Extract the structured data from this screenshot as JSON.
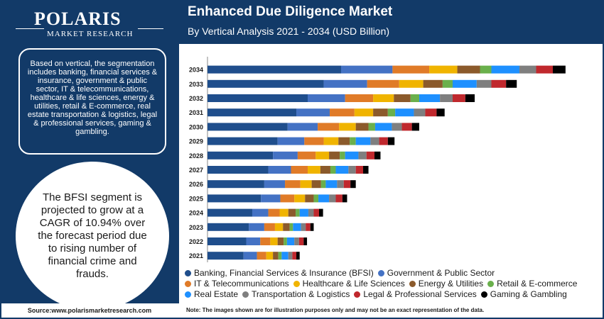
{
  "brand": {
    "name": "POLARIS",
    "sub": "MARKET RESEARCH"
  },
  "info_text": "Based on vertical, the segmentation includes banking, financial services & insurance, government & public sector, IT & telecommunications, healthcare & life sciences, energy & utilities, retail & E-commerce, real estate transportation & logistics, legal & professional services, gaming & gambling.",
  "circle_text": "The BFSI segment is projected to grow at a CAGR of 10.94% over the forecast period due to rising number of financial crime and frauds.",
  "source_text": "Source:www.polarismarketresearch.com",
  "note_text": "Note: The images shown are for illustration purposes only and may not be an exact representation of the data.",
  "chart_data": {
    "type": "bar",
    "orientation": "horizontal",
    "stacked": true,
    "title": "Enhanced Due Diligence Market",
    "subtitle": "By Vertical Analysis 2021 - 2034 (USD Billion)",
    "categories": [
      "2034",
      "2033",
      "2032",
      "2031",
      "2030",
      "2029",
      "2028",
      "2027",
      "2026",
      "2025",
      "2024",
      "2023",
      "2022",
      "2021"
    ],
    "legend_position": "bottom",
    "grid": false,
    "series": [
      {
        "name": "Banking, Financial Services & Insurance (BFSI)",
        "color": "#1f4e8c",
        "values": [
          2.0,
          1.74,
          1.5,
          1.33,
          1.2,
          1.05,
          0.98,
          0.91,
          0.85,
          0.8,
          0.67,
          0.62,
          0.58,
          0.54
        ]
      },
      {
        "name": "Government & Public Sector",
        "color": "#4472c4",
        "values": [
          0.77,
          0.65,
          0.56,
          0.5,
          0.45,
          0.4,
          0.37,
          0.34,
          0.31,
          0.29,
          0.24,
          0.23,
          0.21,
          0.2
        ]
      },
      {
        "name": "IT & Telecommunications",
        "color": "#e07b28",
        "values": [
          0.55,
          0.48,
          0.42,
          0.37,
          0.32,
          0.29,
          0.27,
          0.25,
          0.23,
          0.21,
          0.17,
          0.16,
          0.15,
          0.14
        ]
      },
      {
        "name": "Healthcare & Life Sciences",
        "color": "#f0b400",
        "values": [
          0.42,
          0.36,
          0.31,
          0.28,
          0.25,
          0.22,
          0.2,
          0.19,
          0.17,
          0.16,
          0.13,
          0.12,
          0.11,
          0.1
        ]
      },
      {
        "name": "Energy & Utilities",
        "color": "#8b5a2b",
        "values": [
          0.34,
          0.29,
          0.25,
          0.22,
          0.19,
          0.17,
          0.16,
          0.15,
          0.14,
          0.13,
          0.11,
          0.1,
          0.09,
          0.08
        ]
      },
      {
        "name": "Retail & E-commerce",
        "color": "#6ab04c",
        "values": [
          0.17,
          0.15,
          0.13,
          0.11,
          0.1,
          0.09,
          0.08,
          0.08,
          0.07,
          0.07,
          0.06,
          0.05,
          0.05,
          0.05
        ]
      },
      {
        "name": "Real Estate",
        "color": "#1e90ff",
        "values": [
          0.42,
          0.36,
          0.31,
          0.28,
          0.25,
          0.22,
          0.2,
          0.19,
          0.17,
          0.16,
          0.13,
          0.12,
          0.11,
          0.1
        ]
      },
      {
        "name": "Transportation & Logistics",
        "color": "#7f7f7f",
        "values": [
          0.25,
          0.22,
          0.19,
          0.17,
          0.15,
          0.13,
          0.12,
          0.11,
          0.1,
          0.1,
          0.08,
          0.07,
          0.07,
          0.06
        ]
      },
      {
        "name": "Legal & Professional Services",
        "color": "#c0282d",
        "values": [
          0.25,
          0.22,
          0.19,
          0.17,
          0.15,
          0.13,
          0.12,
          0.11,
          0.1,
          0.1,
          0.08,
          0.07,
          0.07,
          0.06
        ]
      },
      {
        "name": "Gaming & Gambling",
        "color": "#000000",
        "values": [
          0.19,
          0.16,
          0.14,
          0.12,
          0.11,
          0.1,
          0.09,
          0.08,
          0.08,
          0.07,
          0.06,
          0.05,
          0.05,
          0.05
        ]
      }
    ]
  }
}
